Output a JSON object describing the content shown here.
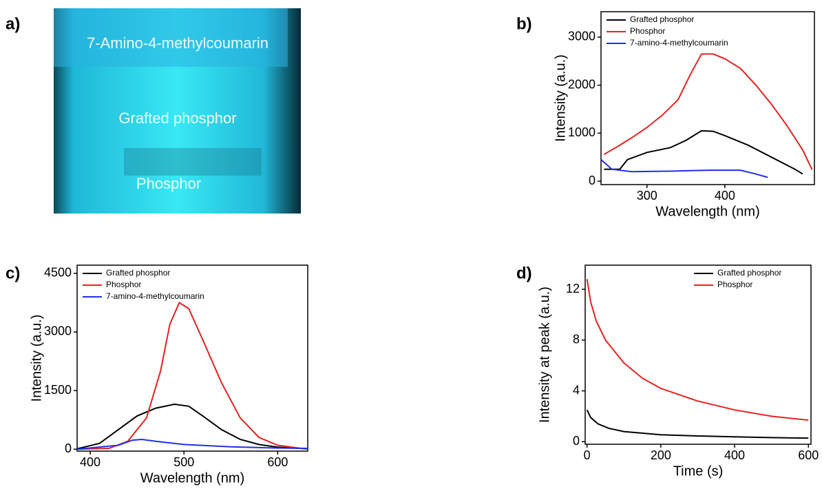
{
  "photo": {
    "panel_label": "a)",
    "labels": [
      "7-Amino-4-methylcoumarin",
      "Grafted phosphor",
      "Phosphor"
    ]
  },
  "chart_data": [
    {
      "type": "line",
      "panel_label": "b)",
      "xlabel": "Wavelength (nm)",
      "ylabel": "Intensity (a.u.)",
      "xlim": [
        241,
        515
      ],
      "ylim": [
        -70,
        3530
      ],
      "xticks": [
        300,
        400
      ],
      "yticks": [
        0,
        1000,
        2000,
        3000
      ],
      "legend": "upper left",
      "series": [
        {
          "name": "Grafted phosphor",
          "color": "#000000",
          "x": [
            245,
            265,
            275,
            300,
            330,
            350,
            370,
            385,
            400,
            430,
            460,
            490,
            500
          ],
          "values": [
            250,
            250,
            450,
            600,
            700,
            850,
            1050,
            1040,
            950,
            750,
            500,
            250,
            150
          ]
        },
        {
          "name": "Phosphor",
          "color": "#e8201f",
          "x": [
            245,
            260,
            280,
            300,
            320,
            340,
            355,
            370,
            385,
            400,
            420,
            440,
            460,
            480,
            500,
            512
          ],
          "values": [
            560,
            700,
            900,
            1120,
            1380,
            1700,
            2200,
            2650,
            2650,
            2550,
            2350,
            2000,
            1600,
            1150,
            650,
            240
          ]
        },
        {
          "name": "7-amino-4-methylcoumarin",
          "color": "#1f2fe8",
          "x": [
            241,
            255,
            280,
            330,
            380,
            420,
            440,
            455
          ],
          "values": [
            450,
            250,
            200,
            210,
            230,
            230,
            150,
            80
          ]
        }
      ]
    },
    {
      "type": "line",
      "panel_label": "c)",
      "xlabel": "Wavelength (nm)",
      "ylabel": "Intensity (a.u.)",
      "xlim": [
        386,
        632
      ],
      "ylim": [
        -50,
        4710
      ],
      "xticks": [
        400,
        500,
        600
      ],
      "yticks": [
        0,
        1500,
        3000,
        4500
      ],
      "legend": "upper left",
      "series": [
        {
          "name": "Grafted phosphor",
          "color": "#000000",
          "x": [
            386,
            410,
            430,
            450,
            470,
            490,
            505,
            520,
            540,
            560,
            580,
            600,
            632
          ],
          "values": [
            10,
            150,
            500,
            850,
            1050,
            1150,
            1100,
            850,
            500,
            250,
            120,
            50,
            10
          ]
        },
        {
          "name": "Phosphor",
          "color": "#e8201f",
          "x": [
            386,
            420,
            440,
            460,
            475,
            485,
            495,
            505,
            520,
            540,
            560,
            580,
            600,
            632
          ],
          "values": [
            0,
            20,
            200,
            800,
            2000,
            3200,
            3750,
            3600,
            2800,
            1700,
            800,
            300,
            100,
            0
          ]
        },
        {
          "name": "7-amino-4-methylcoumarin",
          "color": "#1f2fe8",
          "x": [
            386,
            430,
            445,
            455,
            470,
            500,
            550,
            600,
            632
          ],
          "values": [
            0,
            100,
            230,
            250,
            200,
            120,
            60,
            30,
            20
          ]
        }
      ]
    },
    {
      "type": "line",
      "panel_label": "d)",
      "xlabel": "Time (s)",
      "ylabel": "Intensity at peak (a.u.)",
      "xlim": [
        -5,
        607
      ],
      "ylim": [
        -0.2,
        13.9
      ],
      "xticks": [
        0,
        200,
        400,
        600
      ],
      "yticks": [
        0,
        4,
        8,
        12
      ],
      "legend": "upper right",
      "series": [
        {
          "name": "Grafted phosphor",
          "color": "#000000",
          "x": [
            0,
            10,
            30,
            60,
            100,
            200,
            300,
            400,
            500,
            600
          ],
          "values": [
            2.5,
            1.9,
            1.4,
            1.05,
            0.8,
            0.55,
            0.45,
            0.38,
            0.32,
            0.28
          ]
        },
        {
          "name": "Phosphor",
          "color": "#e8201f",
          "x": [
            0,
            10,
            25,
            50,
            100,
            150,
            200,
            300,
            400,
            500,
            600
          ],
          "values": [
            12.8,
            11,
            9.5,
            8,
            6.2,
            5,
            4.2,
            3.2,
            2.5,
            2,
            1.7
          ]
        }
      ]
    }
  ]
}
